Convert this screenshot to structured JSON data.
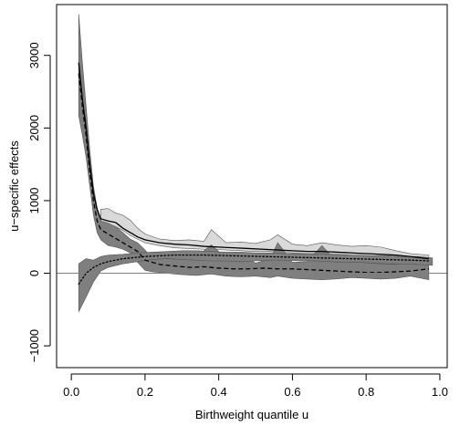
{
  "chart_data": {
    "type": "line",
    "xlabel": "Birthweight quantile u",
    "ylabel": "u−specific effects",
    "xlim": [
      -0.04,
      1.02
    ],
    "ylim": [
      -1300,
      3700
    ],
    "x_ticks": [
      0.0,
      0.2,
      0.4,
      0.6,
      0.8,
      1.0
    ],
    "x_tick_labels": [
      "0.0",
      "0.2",
      "0.4",
      "0.6",
      "0.8",
      "1.0"
    ],
    "y_ticks": [
      -1000,
      0,
      1000,
      2000,
      3000
    ],
    "y_tick_labels": [
      "−1000",
      "0",
      "1000",
      "2000",
      "3000"
    ],
    "reference_line": 0,
    "grid": false,
    "bands": [
      {
        "color": "#d9d9d9",
        "x": [
          0.08,
          0.1,
          0.12,
          0.14,
          0.16,
          0.18,
          0.2,
          0.24,
          0.28,
          0.32,
          0.36,
          0.38,
          0.42,
          0.46,
          0.5,
          0.54,
          0.56,
          0.6,
          0.64,
          0.68,
          0.72,
          0.76,
          0.8,
          0.84,
          0.88,
          0.92,
          0.97
        ],
        "upper": [
          880,
          890,
          830,
          800,
          730,
          620,
          540,
          470,
          450,
          460,
          440,
          600,
          420,
          430,
          410,
          460,
          530,
          400,
          380,
          420,
          390,
          370,
          380,
          360,
          310,
          270,
          250
        ],
        "lower": [
          690,
          680,
          640,
          590,
          520,
          470,
          420,
          380,
          350,
          340,
          330,
          330,
          320,
          310,
          300,
          300,
          290,
          280,
          270,
          270,
          260,
          250,
          240,
          230,
          220,
          200,
          180
        ]
      },
      {
        "color": "#7f7f7f",
        "x": [
          0.02,
          0.03,
          0.04,
          0.05,
          0.06,
          0.07,
          0.08,
          0.1,
          0.12,
          0.14,
          0.16,
          0.18,
          0.2,
          0.22,
          0.26,
          0.3,
          0.34,
          0.38,
          0.42,
          0.46,
          0.5,
          0.54,
          0.56,
          0.6,
          0.64,
          0.68,
          0.72,
          0.76,
          0.8,
          0.84,
          0.88,
          0.92,
          0.97
        ],
        "upper": [
          3570,
          2900,
          2300,
          1700,
          1200,
          900,
          720,
          690,
          640,
          560,
          470,
          420,
          320,
          200,
          230,
          260,
          230,
          390,
          210,
          250,
          140,
          200,
          420,
          150,
          160,
          380,
          160,
          170,
          140,
          130,
          120,
          160,
          150
        ],
        "lower": [
          2170,
          1900,
          1600,
          1200,
          800,
          560,
          460,
          380,
          360,
          330,
          280,
          150,
          40,
          20,
          0,
          -20,
          -30,
          -10,
          -40,
          -50,
          -40,
          -60,
          -40,
          -70,
          -80,
          -90,
          -80,
          -60,
          -70,
          -80,
          -70,
          -40,
          -90
        ]
      },
      {
        "color": "#7f7f7f",
        "x": [
          0.02,
          0.04,
          0.06,
          0.08,
          0.1,
          0.14,
          0.18,
          0.22,
          0.26,
          0.3,
          0.34,
          0.38,
          0.42,
          0.46,
          0.5,
          0.54,
          0.58,
          0.62,
          0.66,
          0.7,
          0.74,
          0.78,
          0.82,
          0.86,
          0.9,
          0.94,
          0.98
        ],
        "upper": [
          130,
          200,
          180,
          230,
          250,
          260,
          280,
          290,
          300,
          310,
          310,
          300,
          290,
          290,
          280,
          280,
          270,
          270,
          260,
          260,
          250,
          250,
          240,
          240,
          230,
          230,
          210
        ],
        "lower": [
          -530,
          -330,
          -120,
          30,
          80,
          130,
          160,
          190,
          200,
          190,
          180,
          170,
          170,
          160,
          170,
          180,
          180,
          170,
          170,
          160,
          150,
          150,
          140,
          130,
          130,
          120,
          110
        ]
      }
    ],
    "series": [
      {
        "style": "solid",
        "x": [
          0.02,
          0.03,
          0.04,
          0.05,
          0.06,
          0.07,
          0.08,
          0.1,
          0.12,
          0.14,
          0.16,
          0.18,
          0.2,
          0.24,
          0.28,
          0.32,
          0.36,
          0.4,
          0.44,
          0.48,
          0.52,
          0.56,
          0.6,
          0.64,
          0.68,
          0.72,
          0.76,
          0.8,
          0.84,
          0.88,
          0.92,
          0.97
        ],
        "y": [
          2900,
          2400,
          2000,
          1500,
          1100,
          880,
          750,
          720,
          700,
          620,
          560,
          500,
          460,
          420,
          400,
          390,
          370,
          360,
          350,
          340,
          330,
          320,
          310,
          300,
          300,
          290,
          280,
          270,
          260,
          250,
          230,
          200
        ]
      },
      {
        "style": "dashed",
        "x": [
          0.02,
          0.03,
          0.04,
          0.05,
          0.06,
          0.07,
          0.08,
          0.1,
          0.12,
          0.14,
          0.16,
          0.18,
          0.2,
          0.24,
          0.28,
          0.32,
          0.36,
          0.4,
          0.44,
          0.48,
          0.52,
          0.56,
          0.6,
          0.64,
          0.68,
          0.72,
          0.76,
          0.8,
          0.84,
          0.88,
          0.92,
          0.97
        ],
        "y": [
          2750,
          2300,
          1900,
          1400,
          1000,
          720,
          600,
          540,
          480,
          420,
          360,
          300,
          180,
          120,
          100,
          80,
          90,
          70,
          60,
          60,
          70,
          60,
          60,
          50,
          40,
          30,
          20,
          10,
          10,
          20,
          30,
          60
        ]
      },
      {
        "style": "dotted",
        "x": [
          0.02,
          0.04,
          0.06,
          0.08,
          0.1,
          0.12,
          0.14,
          0.16,
          0.18,
          0.2,
          0.24,
          0.28,
          0.32,
          0.36,
          0.4,
          0.44,
          0.48,
          0.52,
          0.56,
          0.6,
          0.64,
          0.68,
          0.72,
          0.76,
          0.8,
          0.84,
          0.88,
          0.92,
          0.97
        ],
        "y": [
          -150,
          0,
          80,
          130,
          160,
          180,
          200,
          210,
          220,
          230,
          240,
          250,
          250,
          250,
          245,
          240,
          235,
          230,
          225,
          220,
          215,
          210,
          205,
          200,
          195,
          190,
          185,
          180,
          170
        ]
      }
    ]
  }
}
